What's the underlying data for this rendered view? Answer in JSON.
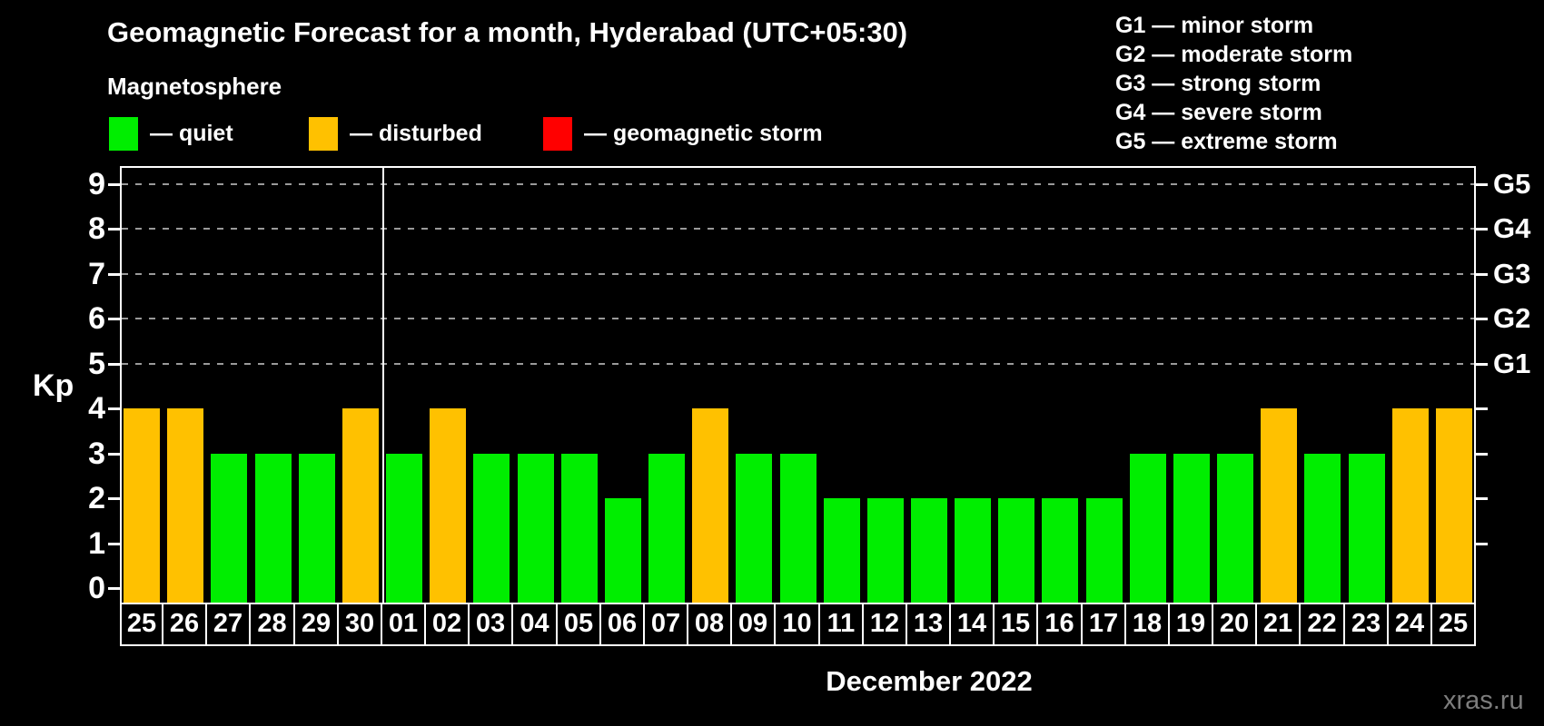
{
  "page": {
    "background": "#000000"
  },
  "magnetosphere_legend": {
    "title": "Magnetosphere",
    "items": [
      {
        "name": "quiet",
        "label": "— quiet",
        "color": "#00EE00"
      },
      {
        "name": "disturbed",
        "label": "— disturbed",
        "color": "#FFC100"
      },
      {
        "name": "geomagnetic-storm",
        "label": "— geomagnetic storm",
        "color": "#FF0000"
      }
    ]
  },
  "g_scale_legend": {
    "items": [
      "G1 — minor storm",
      "G2 — moderate storm",
      "G3 — strong storm",
      "G4 — severe storm",
      "G5 — extreme storm"
    ]
  },
  "chart_data": {
    "type": "bar",
    "title": "Geomagnetic Forecast for a month, Hyderabad (UTC+05:30)",
    "ylabel": "Kp",
    "xlabel": "December 2022",
    "ylim": [
      0,
      9
    ],
    "y_ticks": [
      0,
      1,
      2,
      3,
      4,
      5,
      6,
      7,
      8,
      9
    ],
    "gridlines_at": [
      5,
      6,
      7,
      8,
      9
    ],
    "grid": "dashed",
    "right_axis_labels": [
      {
        "label": "G1",
        "kp": 5
      },
      {
        "label": "G2",
        "kp": 6
      },
      {
        "label": "G3",
        "kp": 7
      },
      {
        "label": "G4",
        "kp": 8
      },
      {
        "label": "G5",
        "kp": 9
      }
    ],
    "month_separator_after_index": 5,
    "categories": [
      "25",
      "26",
      "27",
      "28",
      "29",
      "30",
      "01",
      "02",
      "03",
      "04",
      "05",
      "06",
      "07",
      "08",
      "09",
      "10",
      "11",
      "12",
      "13",
      "14",
      "15",
      "16",
      "17",
      "18",
      "19",
      "20",
      "21",
      "22",
      "23",
      "24",
      "25"
    ],
    "values": [
      4,
      4,
      3,
      3,
      3,
      4,
      3,
      4,
      3,
      3,
      3,
      2,
      3,
      4,
      3,
      3,
      2,
      2,
      2,
      2,
      2,
      2,
      2,
      3,
      3,
      3,
      4,
      3,
      3,
      4,
      4
    ],
    "colors": {
      "quiet": "#00EE00",
      "disturbed": "#FFC100",
      "storm": "#FF0000"
    },
    "bars": [
      {
        "day": "25",
        "kp": 4,
        "state": "disturbed"
      },
      {
        "day": "26",
        "kp": 4,
        "state": "disturbed"
      },
      {
        "day": "27",
        "kp": 3,
        "state": "quiet"
      },
      {
        "day": "28",
        "kp": 3,
        "state": "quiet"
      },
      {
        "day": "29",
        "kp": 3,
        "state": "quiet"
      },
      {
        "day": "30",
        "kp": 4,
        "state": "disturbed"
      },
      {
        "day": "01",
        "kp": 3,
        "state": "quiet"
      },
      {
        "day": "02",
        "kp": 4,
        "state": "disturbed"
      },
      {
        "day": "03",
        "kp": 3,
        "state": "quiet"
      },
      {
        "day": "04",
        "kp": 3,
        "state": "quiet"
      },
      {
        "day": "05",
        "kp": 3,
        "state": "quiet"
      },
      {
        "day": "06",
        "kp": 2,
        "state": "quiet"
      },
      {
        "day": "07",
        "kp": 3,
        "state": "quiet"
      },
      {
        "day": "08",
        "kp": 4,
        "state": "disturbed"
      },
      {
        "day": "09",
        "kp": 3,
        "state": "quiet"
      },
      {
        "day": "10",
        "kp": 3,
        "state": "quiet"
      },
      {
        "day": "11",
        "kp": 2,
        "state": "quiet"
      },
      {
        "day": "12",
        "kp": 2,
        "state": "quiet"
      },
      {
        "day": "13",
        "kp": 2,
        "state": "quiet"
      },
      {
        "day": "14",
        "kp": 2,
        "state": "quiet"
      },
      {
        "day": "15",
        "kp": 2,
        "state": "quiet"
      },
      {
        "day": "16",
        "kp": 2,
        "state": "quiet"
      },
      {
        "day": "17",
        "kp": 2,
        "state": "quiet"
      },
      {
        "day": "18",
        "kp": 3,
        "state": "quiet"
      },
      {
        "day": "19",
        "kp": 3,
        "state": "quiet"
      },
      {
        "day": "20",
        "kp": 3,
        "state": "quiet"
      },
      {
        "day": "21",
        "kp": 4,
        "state": "disturbed"
      },
      {
        "day": "22",
        "kp": 3,
        "state": "quiet"
      },
      {
        "day": "23",
        "kp": 3,
        "state": "quiet"
      },
      {
        "day": "24",
        "kp": 4,
        "state": "disturbed"
      },
      {
        "day": "25",
        "kp": 4,
        "state": "disturbed"
      }
    ],
    "legend_position": "top-left"
  },
  "watermark": "xras.ru"
}
